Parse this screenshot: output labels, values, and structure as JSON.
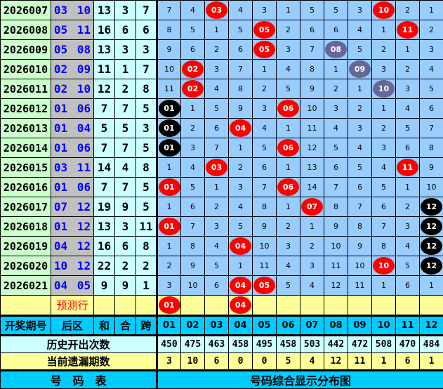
{
  "colors": {
    "red_ball": "#ff0000",
    "black_ball": "#000000",
    "purple_ball": "#666699",
    "header": "#00ccff",
    "grid": "#99ccff"
  },
  "rows": [
    {
      "period": "2026007",
      "back": "03 10",
      "sum": "13",
      "he": "3",
      "kua": "7",
      "cells": [
        "7",
        "4",
        "03",
        "4",
        "3",
        "1",
        "5",
        "5",
        "3",
        "10",
        "2",
        "1"
      ],
      "styles": [
        "",
        "",
        "r",
        "",
        "",
        "",
        "",
        "",
        "",
        "r",
        "",
        ""
      ]
    },
    {
      "period": "2026008",
      "back": "05 11",
      "sum": "16",
      "he": "6",
      "kua": "6",
      "cells": [
        "8",
        "5",
        "1",
        "5",
        "05",
        "2",
        "6",
        "6",
        "4",
        "1",
        "11",
        "2"
      ],
      "styles": [
        "",
        "",
        "",
        "",
        "r",
        "",
        "",
        "",
        "",
        "",
        "r",
        ""
      ]
    },
    {
      "period": "2026009",
      "back": "05 08",
      "sum": "13",
      "he": "3",
      "kua": "3",
      "cells": [
        "9",
        "6",
        "2",
        "6",
        "05",
        "3",
        "7",
        "08",
        "5",
        "2",
        "1",
        "3"
      ],
      "styles": [
        "",
        "",
        "",
        "",
        "r",
        "",
        "",
        "p",
        "",
        "",
        "",
        ""
      ]
    },
    {
      "period": "2026010",
      "back": "02 09",
      "sum": "11",
      "he": "1",
      "kua": "7",
      "cells": [
        "10",
        "02",
        "3",
        "7",
        "1",
        "4",
        "8",
        "1",
        "09",
        "3",
        "2",
        "4"
      ],
      "styles": [
        "",
        "r",
        "",
        "",
        "",
        "",
        "",
        "",
        "p",
        "",
        "",
        ""
      ]
    },
    {
      "period": "2026011",
      "back": "02 10",
      "sum": "12",
      "he": "2",
      "kua": "8",
      "cells": [
        "11",
        "02",
        "4",
        "8",
        "2",
        "5",
        "9",
        "2",
        "1",
        "10",
        "3",
        "5"
      ],
      "styles": [
        "",
        "r",
        "",
        "",
        "",
        "",
        "",
        "",
        "",
        "p",
        "",
        ""
      ]
    },
    {
      "period": "2026012",
      "back": "01 06",
      "sum": "7",
      "he": "7",
      "kua": "5",
      "cells": [
        "01",
        "1",
        "5",
        "9",
        "3",
        "06",
        "10",
        "3",
        "2",
        "1",
        "4",
        "6"
      ],
      "styles": [
        "k",
        "",
        "",
        "",
        "",
        "r",
        "",
        "",
        "",
        "",
        "",
        ""
      ]
    },
    {
      "period": "2026013",
      "back": "01 04",
      "sum": "5",
      "he": "5",
      "kua": "3",
      "cells": [
        "01",
        "2",
        "6",
        "04",
        "4",
        "1",
        "11",
        "4",
        "3",
        "2",
        "5",
        "7"
      ],
      "styles": [
        "k",
        "",
        "",
        "r",
        "",
        "",
        "",
        "",
        "",
        "",
        "",
        ""
      ]
    },
    {
      "period": "2026014",
      "back": "01 06",
      "sum": "7",
      "he": "7",
      "kua": "5",
      "cells": [
        "01",
        "3",
        "7",
        "1",
        "5",
        "06",
        "12",
        "5",
        "4",
        "3",
        "6",
        "8"
      ],
      "styles": [
        "k",
        "",
        "",
        "",
        "",
        "r",
        "",
        "",
        "",
        "",
        "",
        ""
      ]
    },
    {
      "period": "2026015",
      "back": "03 11",
      "sum": "14",
      "he": "4",
      "kua": "8",
      "cells": [
        "1",
        "4",
        "03",
        "2",
        "6",
        "1",
        "13",
        "6",
        "5",
        "4",
        "11",
        "9"
      ],
      "styles": [
        "",
        "",
        "r",
        "",
        "",
        "",
        "",
        "",
        "",
        "",
        "r",
        ""
      ]
    },
    {
      "period": "2026016",
      "back": "01 06",
      "sum": "7",
      "he": "7",
      "kua": "5",
      "cells": [
        "01",
        "5",
        "1",
        "3",
        "7",
        "06",
        "14",
        "7",
        "6",
        "5",
        "1",
        "10"
      ],
      "styles": [
        "r",
        "",
        "",
        "",
        "",
        "r",
        "",
        "",
        "",
        "",
        "",
        ""
      ]
    },
    {
      "period": "2026017",
      "back": "07 12",
      "sum": "19",
      "he": "9",
      "kua": "5",
      "cells": [
        "1",
        "6",
        "2",
        "4",
        "8",
        "1",
        "07",
        "8",
        "7",
        "6",
        "2",
        "12"
      ],
      "styles": [
        "",
        "",
        "",
        "",
        "",
        "",
        "r",
        "",
        "",
        "",
        "",
        "k"
      ]
    },
    {
      "period": "2026018",
      "back": "01 12",
      "sum": "13",
      "he": "3",
      "kua": "11",
      "cells": [
        "01",
        "7",
        "3",
        "5",
        "9",
        "2",
        "1",
        "9",
        "8",
        "7",
        "3",
        "12"
      ],
      "styles": [
        "r",
        "",
        "",
        "",
        "",
        "",
        "",
        "",
        "",
        "",
        "",
        "k"
      ]
    },
    {
      "period": "2026019",
      "back": "04 12",
      "sum": "16",
      "he": "6",
      "kua": "8",
      "cells": [
        "1",
        "8",
        "4",
        "04",
        "10",
        "3",
        "2",
        "10",
        "9",
        "8",
        "4",
        "12"
      ],
      "styles": [
        "",
        "",
        "",
        "r",
        "",
        "",
        "",
        "",
        "",
        "",
        "",
        "k"
      ]
    },
    {
      "period": "2026020",
      "back": "10 12",
      "sum": "22",
      "he": "2",
      "kua": "2",
      "cells": [
        "2",
        "9",
        "5",
        "1",
        "11",
        "4",
        "3",
        "11",
        "10",
        "10",
        "5",
        "12"
      ],
      "styles": [
        "",
        "",
        "",
        "",
        "",
        "",
        "",
        "",
        "",
        "r",
        "",
        "k"
      ]
    },
    {
      "period": "2026021",
      "back": "04 05",
      "sum": "9",
      "he": "9",
      "kua": "1",
      "cells": [
        "3",
        "10",
        "6",
        "04",
        "05",
        "5",
        "4",
        "12",
        "11",
        "1",
        "6",
        "1"
      ],
      "styles": [
        "",
        "",
        "",
        "r",
        "r",
        "",
        "",
        "",
        "",
        "",
        "",
        ""
      ]
    }
  ],
  "predict": {
    "label": "预测行",
    "cells": [
      "01",
      "",
      "",
      "04",
      "",
      "",
      "",
      "",
      "",
      "",
      "",
      ""
    ],
    "styles": [
      "r",
      "",
      "",
      "r",
      "",
      "",
      "",
      "",
      "",
      "",
      "",
      ""
    ]
  },
  "header": {
    "period": "开奖期号",
    "back": "后区",
    "sum": "和",
    "he": "合",
    "kua": "跨",
    "numbers": [
      "01",
      "02",
      "03",
      "04",
      "05",
      "06",
      "07",
      "08",
      "09",
      "10",
      "11",
      "12"
    ]
  },
  "history": {
    "label": "历史开出次数",
    "values": [
      "450",
      "475",
      "463",
      "458",
      "495",
      "458",
      "503",
      "442",
      "472",
      "508",
      "470",
      "484"
    ]
  },
  "omission": {
    "label": "当前遗漏期数",
    "values": [
      "3",
      "10",
      "6",
      "0",
      "0",
      "5",
      "4",
      "12",
      "11",
      "1",
      "6",
      "1"
    ]
  },
  "footer": {
    "left": "号　码　表",
    "right": "号码综合显示分布图"
  }
}
